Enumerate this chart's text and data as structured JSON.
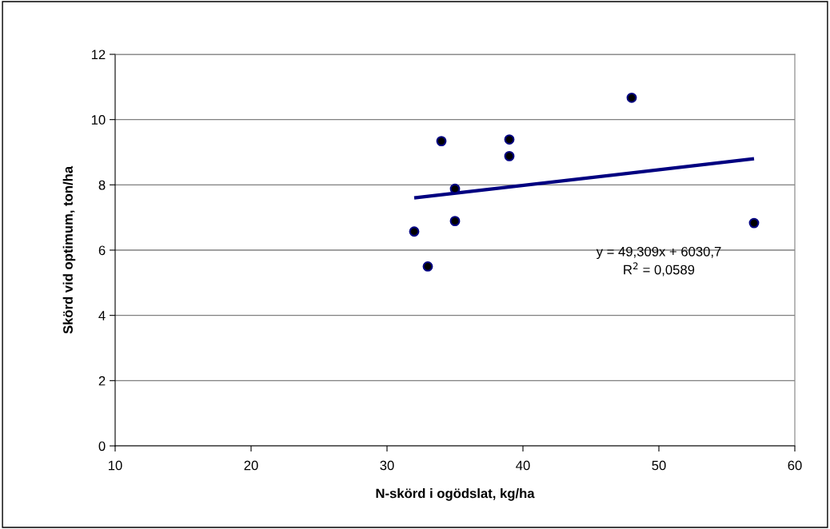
{
  "chart_data": {
    "type": "scatter",
    "xlabel": "N-skörd i ogödslat, kg/ha",
    "ylabel": "Skörd vid optimum, ton/ha",
    "series": [
      {
        "marker": "circle",
        "color": "#000000",
        "x": [
          32,
          33,
          34,
          35,
          35,
          39,
          39,
          48,
          57
        ],
        "values": [
          6.57,
          5.5,
          9.34,
          7.88,
          6.89,
          9.39,
          8.88,
          10.67,
          6.83
        ]
      },
      {
        "type": "line",
        "color": "#000080",
        "x": [
          32,
          57
        ],
        "values": [
          7.6,
          8.8
        ]
      }
    ],
    "annotations": [
      "y = 49,309x + 6030,7\nR$^{2}$ = 0,0589"
    ],
    "xlim": [
      10,
      60
    ],
    "xticks": [
      10,
      20,
      30,
      40,
      50,
      60
    ],
    "ylim": [
      0,
      12
    ],
    "yticks": [
      0,
      2,
      4,
      6,
      8,
      10,
      12
    ],
    "grid": "y",
    "legend": false
  }
}
